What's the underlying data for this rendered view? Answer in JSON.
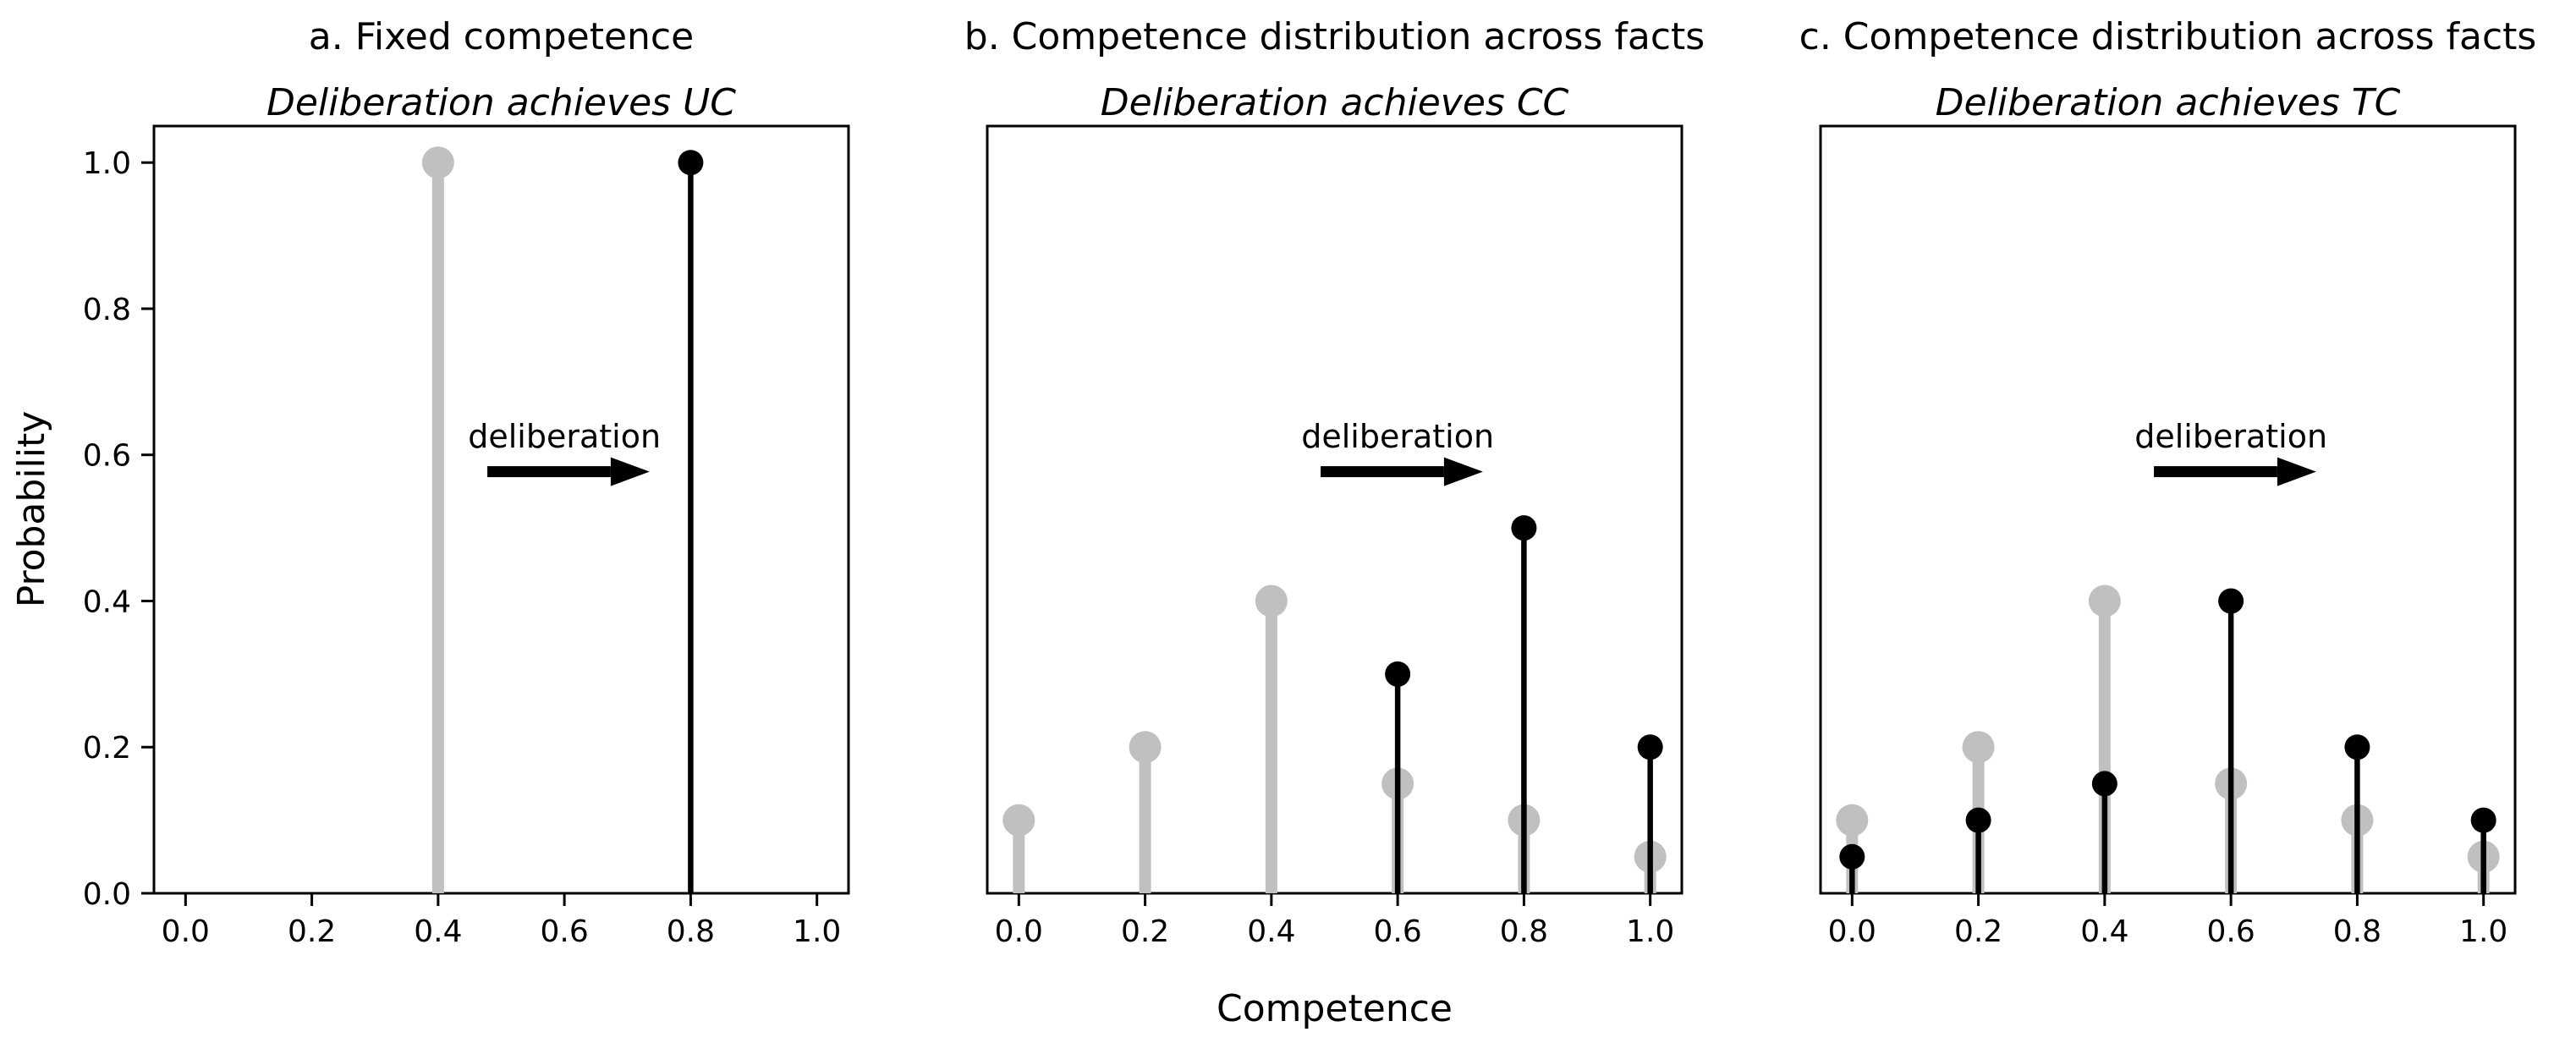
{
  "figure": {
    "background": "#ffffff",
    "xlabel": "Competence",
    "ylabel": "Probability",
    "annotation_text": "deliberation"
  },
  "chart_data": {
    "type": "stem",
    "xlabel": "Competence",
    "ylabel": "Probability",
    "xlim": [
      -0.05,
      1.05
    ],
    "ylim": [
      0,
      1.05
    ],
    "x_ticks": [
      0.0,
      0.2,
      0.4,
      0.6,
      0.8,
      1.0
    ],
    "y_ticks": [
      0.0,
      0.2,
      0.4,
      0.6,
      0.8,
      1.0
    ],
    "x_tick_labels": [
      "0.0",
      "0.2",
      "0.4",
      "0.6",
      "0.8",
      "1.0"
    ],
    "y_tick_labels": [
      "0.0",
      "0.2",
      "0.4",
      "0.6",
      "0.8",
      "1.0"
    ],
    "grid": false,
    "legend": "none",
    "colors": {
      "before_deliberation": "#c0c0c0",
      "after_deliberation": "#000000",
      "text": "#000000",
      "spine": "#000000"
    },
    "annotation": {
      "text": "deliberation",
      "text_x": 0.6,
      "text_y": 0.61,
      "arrow_y": 0.577,
      "arrow_x_start": 0.478,
      "arrow_x_end": 0.735
    },
    "panels": [
      {
        "id": "a",
        "title": "a. Fixed competence",
        "subtitle": "Deliberation achieves UC",
        "series": [
          {
            "name": "before_deliberation",
            "x": [
              0.4
            ],
            "y": [
              1.0
            ]
          },
          {
            "name": "after_deliberation",
            "x": [
              0.8
            ],
            "y": [
              1.0
            ]
          }
        ]
      },
      {
        "id": "b",
        "title": "b. Competence distribution across facts",
        "subtitle": "Deliberation achieves CC",
        "series": [
          {
            "name": "before_deliberation",
            "x": [
              0.0,
              0.2,
              0.4,
              0.6,
              0.8,
              1.0
            ],
            "y": [
              0.1,
              0.2,
              0.4,
              0.15,
              0.1,
              0.05
            ]
          },
          {
            "name": "after_deliberation",
            "x": [
              0.6,
              0.8,
              1.0
            ],
            "y": [
              0.3,
              0.5,
              0.2
            ]
          }
        ]
      },
      {
        "id": "c",
        "title": "c. Competence distribution across facts",
        "subtitle": "Deliberation achieves TC",
        "series": [
          {
            "name": "before_deliberation",
            "x": [
              0.0,
              0.2,
              0.4,
              0.6,
              0.8,
              1.0
            ],
            "y": [
              0.1,
              0.2,
              0.4,
              0.15,
              0.1,
              0.05
            ]
          },
          {
            "name": "after_deliberation",
            "x": [
              0.0,
              0.2,
              0.4,
              0.6,
              0.8,
              1.0
            ],
            "y": [
              0.05,
              0.1,
              0.15,
              0.4,
              0.2,
              0.1
            ]
          }
        ]
      }
    ]
  }
}
